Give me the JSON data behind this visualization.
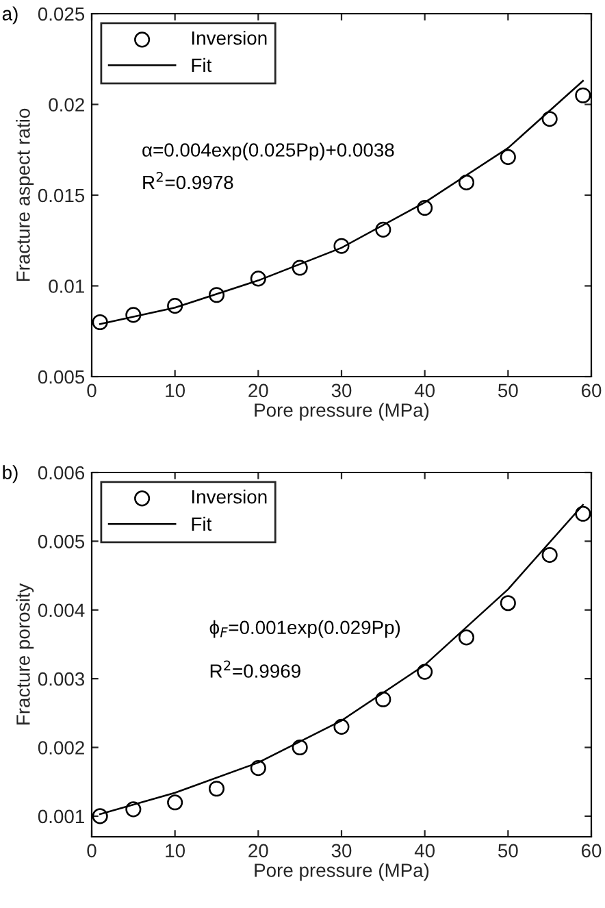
{
  "chart_data": [
    {
      "type": "scatter",
      "xlabel": "Pore pressure (MPa)",
      "ylabel": "Fracture aspect ratio",
      "x": [
        1,
        5,
        10,
        15,
        20,
        25,
        30,
        35,
        40,
        45,
        50,
        55,
        59
      ],
      "series": [
        {
          "name": "Inversion",
          "color": "#000000",
          "marker": "circle",
          "values": [
            0.008,
            0.0084,
            0.0089,
            0.0095,
            0.0104,
            0.011,
            0.0122,
            0.0131,
            0.0143,
            0.0157,
            0.0171,
            0.0192,
            0.0205
          ]
        },
        {
          "name": "Fit",
          "type": "line",
          "color": "#000000",
          "line_style": "solid",
          "marker": "none",
          "x": [
            1,
            10,
            20,
            30,
            40,
            50,
            59
          ],
          "values": [
            0.0079,
            0.0088,
            0.0103,
            0.0121,
            0.0146,
            0.0176,
            0.0213
          ]
        }
      ],
      "xlim": [
        0,
        60
      ],
      "xticks": [
        0,
        10,
        20,
        30,
        40,
        50,
        60
      ],
      "ylim": [
        0.005,
        0.025
      ],
      "yticks": [
        0.005,
        0.01,
        0.015,
        0.02,
        0.025
      ],
      "annotations": [
        "a)",
        "α=0.004exp(0.025Pp)+0.0038",
        "R$^{2}$=0.9978"
      ],
      "legend": "top left",
      "grid": false
    },
    {
      "type": "scatter",
      "xlabel": "Pore pressure (MPa)",
      "ylabel": "Fracture porosity",
      "x": [
        1,
        5,
        10,
        15,
        20,
        25,
        30,
        35,
        40,
        45,
        50,
        55,
        59
      ],
      "series": [
        {
          "name": "Inversion",
          "color": "#000000",
          "marker": "circle",
          "values": [
            0.001,
            0.0011,
            0.0012,
            0.0014,
            0.0017,
            0.002,
            0.0023,
            0.0027,
            0.0031,
            0.0036,
            0.0041,
            0.0048,
            0.0054
          ]
        },
        {
          "name": "Fit",
          "type": "line",
          "color": "#000000",
          "line_style": "solid",
          "marker": "none",
          "x": [
            1,
            10,
            20,
            30,
            40,
            50,
            59
          ],
          "values": [
            0.00103,
            0.00134,
            0.00178,
            0.00239,
            0.0032,
            0.0043,
            0.00553
          ]
        }
      ],
      "xlim": [
        0,
        60
      ],
      "xticks": [
        0,
        10,
        20,
        30,
        40,
        50,
        60
      ],
      "ylim": [
        0.0007,
        0.006
      ],
      "yticks": [
        0.001,
        0.002,
        0.003,
        0.004,
        0.005,
        0.006
      ],
      "annotations": [
        "b)",
        "ϕ$_{F}$=0.001exp(0.029Pp)",
        "R$^{2}$=0.9969"
      ],
      "legend": "top left",
      "grid": false
    }
  ]
}
